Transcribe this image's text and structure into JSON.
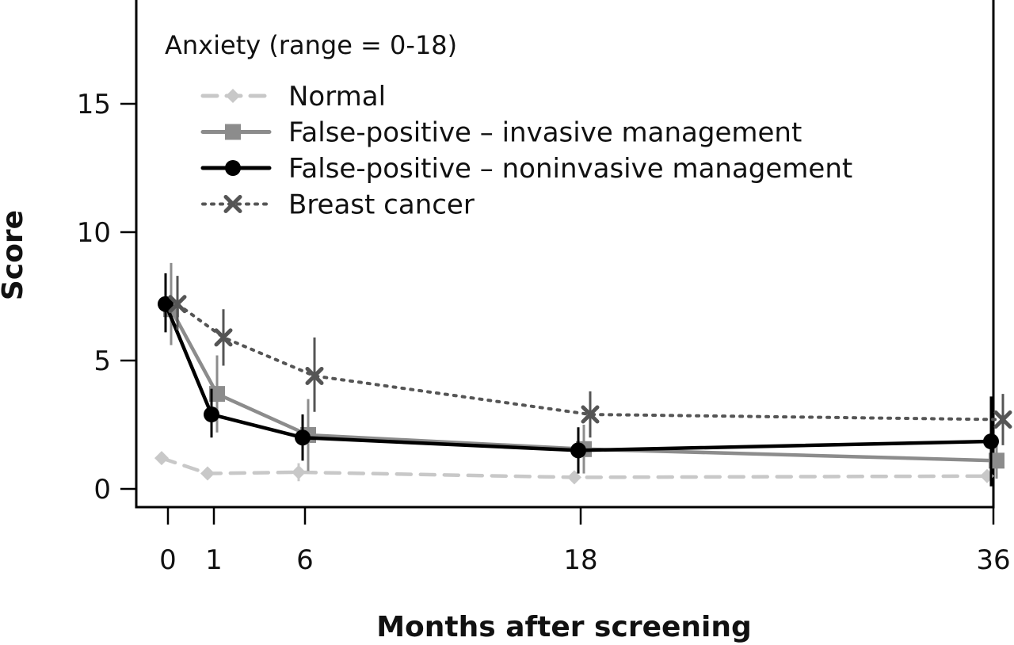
{
  "chart_data": {
    "type": "line",
    "title": "Anxiety (range = 0-18)",
    "xlabel": "Months after screening",
    "ylabel": "Score",
    "x_ticks": [
      "0",
      "1",
      "6",
      "18",
      "36"
    ],
    "y_ticks": [
      "0",
      "5",
      "10",
      "15"
    ],
    "ylim": [
      -0.7,
      19
    ],
    "legend_position": "top-left inside plot",
    "series": [
      {
        "name": "Normal",
        "color": "#c8c8c8",
        "line_style": "dashed",
        "marker": "diamond",
        "points": [
          {
            "x": 0,
            "y": 1.2,
            "err_low": 1.0,
            "err_high": 1.4
          },
          {
            "x": 1,
            "y": 0.6,
            "err_low": 0.5,
            "err_high": 0.75
          },
          {
            "x": 6,
            "y": 0.65,
            "err_low": 0.3,
            "err_high": 1.0
          },
          {
            "x": 18,
            "y": 0.45,
            "err_low": 0.3,
            "err_high": 0.6
          },
          {
            "x": 36,
            "y": 0.5,
            "err_low": 0.35,
            "err_high": 0.65
          }
        ]
      },
      {
        "name": "False-positive – invasive management",
        "color": "#8c8c8c",
        "line_style": "solid",
        "marker": "square",
        "points": [
          {
            "x": 0,
            "y": 7.0,
            "err_low": 5.6,
            "err_high": 8.8
          },
          {
            "x": 1,
            "y": 3.7,
            "err_low": 2.2,
            "err_high": 5.2
          },
          {
            "x": 6,
            "y": 2.1,
            "err_low": 0.7,
            "err_high": 3.5
          },
          {
            "x": 18,
            "y": 1.55,
            "err_low": 0.6,
            "err_high": 2.5
          },
          {
            "x": 36,
            "y": 1.1,
            "err_low": 0.4,
            "err_high": 1.9
          }
        ]
      },
      {
        "name": "False-positive – noninvasive management",
        "color": "#000000",
        "line_style": "solid",
        "marker": "circle",
        "points": [
          {
            "x": 0,
            "y": 7.2,
            "err_low": 6.1,
            "err_high": 8.4
          },
          {
            "x": 1,
            "y": 2.9,
            "err_low": 2.0,
            "err_high": 3.9
          },
          {
            "x": 6,
            "y": 2.0,
            "err_low": 1.1,
            "err_high": 2.9
          },
          {
            "x": 18,
            "y": 1.5,
            "err_low": 0.6,
            "err_high": 2.4
          },
          {
            "x": 36,
            "y": 1.85,
            "err_low": 0.1,
            "err_high": 3.6
          }
        ]
      },
      {
        "name": "Breast cancer",
        "color": "#555555",
        "line_style": "dotted",
        "marker": "x",
        "points": [
          {
            "x": 0,
            "y": 7.2,
            "err_low": 6.2,
            "err_high": 8.3
          },
          {
            "x": 1,
            "y": 5.9,
            "err_low": 4.8,
            "err_high": 7.0
          },
          {
            "x": 6,
            "y": 4.4,
            "err_low": 3.0,
            "err_high": 5.9
          },
          {
            "x": 18,
            "y": 2.9,
            "err_low": 2.0,
            "err_high": 3.8
          },
          {
            "x": 36,
            "y": 2.7,
            "err_low": 1.7,
            "err_high": 3.7
          }
        ]
      }
    ]
  }
}
